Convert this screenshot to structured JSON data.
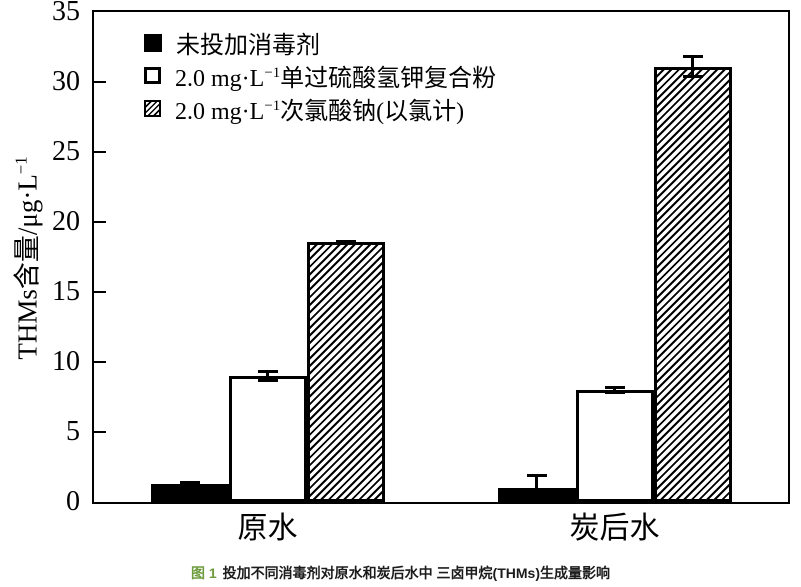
{
  "figure": {
    "caption": {
      "fig_label": "图 1",
      "text": "投加不同消毒剂对原水和炭后水中 三卤甲烷(THMs)生成量影响",
      "fig_label_color": "#6f9c3e"
    }
  },
  "axes": {
    "y_label_base": "THMs含量/μg·L",
    "y_label_sup": "−1"
  },
  "legend": {
    "items": [
      {
        "swatch": "solid-black",
        "pre": "未投加消毒剂",
        "sup": "",
        "post": ""
      },
      {
        "swatch": "open-white",
        "pre": "2.0 mg·L",
        "sup": "−1",
        "post": "单过硫酸氢钾复合粉"
      },
      {
        "swatch": "hatched",
        "pre": "2.0 mg·L",
        "sup": "−1",
        "post": "次氯酸钠(以氯计)"
      }
    ]
  },
  "chart_data": {
    "type": "bar",
    "title": "",
    "xlabel": "",
    "ylabel": "THMs含量/μg·L−1",
    "ylim": [
      0,
      35
    ],
    "yticks": [
      0,
      5,
      10,
      15,
      20,
      25,
      30,
      35
    ],
    "grid": false,
    "legend_position": "top-left-inside",
    "categories": [
      "原水",
      "炭后水"
    ],
    "series": [
      {
        "name": "未投加消毒剂",
        "style": "solid-black",
        "values": [
          1.3,
          1.0
        ],
        "errors": [
          0.2,
          1.0
        ]
      },
      {
        "name": "2.0 mg·L−1单过硫酸氢钾复合粉",
        "style": "open-white",
        "values": [
          9.0,
          8.0
        ],
        "errors": [
          0.4,
          0.3
        ]
      },
      {
        "name": "2.0 mg·L−1次氯酸钠(以氯计)",
        "style": "hatched",
        "values": [
          18.6,
          31.1
        ],
        "errors": [
          0.15,
          0.8
        ]
      }
    ],
    "error_bars": true,
    "bar_colors": {
      "solid-black": "#000000",
      "open-white": "#ffffff",
      "hatched": "#ffffff-with-black-diagonal-hatch"
    }
  }
}
